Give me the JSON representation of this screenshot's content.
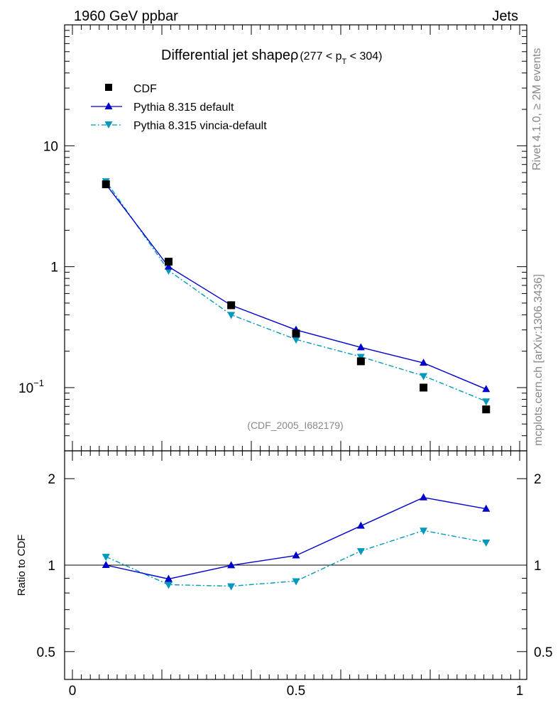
{
  "header": {
    "left": "1960 GeV ppbar",
    "right": "Jets"
  },
  "side_labels": {
    "rivet": "Rivet 4.1.0, ≥ 2M events",
    "mcplots": "mcplots.cern.ch [arXiv:1306.3436]"
  },
  "title": {
    "main": "Differential jet shapeρ",
    "range_open": "(277 < p",
    "range_sub": "T",
    "range_close": " < 304)"
  },
  "analysis_id": "(CDF_2005_I682179)",
  "ratio_ylabel": "Ratio to CDF",
  "colors": {
    "data": "#000000",
    "default": "#0000cc",
    "vincia": "#0099bb",
    "sidetext": "#888888"
  },
  "chart_data": [
    {
      "type": "line",
      "panel": "main",
      "yscale": "log",
      "ylim": [
        0.03,
        100
      ],
      "xlim": [
        0,
        1
      ],
      "yticks": [
        {
          "value": 10,
          "label": "10"
        },
        {
          "value": 1,
          "label": "1"
        },
        {
          "value": 0.1,
          "label": "10",
          "exp": "−1"
        }
      ],
      "x": [
        0.075,
        0.215,
        0.355,
        0.5,
        0.645,
        0.785,
        0.925
      ],
      "legend": [
        {
          "name": "CDF",
          "marker": "square"
        },
        {
          "name": "Pythia 8.315 default",
          "marker": "triangle-up"
        },
        {
          "name": "Pythia 8.315 vincia-default",
          "marker": "triangle-down"
        }
      ],
      "series": [
        {
          "name": "CDF",
          "style": "points",
          "values": [
            4.8,
            1.1,
            0.48,
            0.28,
            0.165,
            0.1,
            0.066
          ]
        },
        {
          "name": "Pythia 8.315 default",
          "style": "solid",
          "values": [
            4.8,
            1.0,
            0.48,
            0.3,
            0.215,
            0.16,
            0.097
          ]
        },
        {
          "name": "Pythia 8.315 vincia-default",
          "style": "dashdot",
          "values": [
            5.1,
            0.93,
            0.4,
            0.25,
            0.18,
            0.125,
            0.077
          ]
        }
      ]
    },
    {
      "type": "line",
      "panel": "ratio",
      "yscale": "log",
      "ylim": [
        0.4,
        2.5
      ],
      "xlim": [
        0,
        1
      ],
      "xticks": [
        {
          "value": 0,
          "label": "0"
        },
        {
          "value": 0.5,
          "label": "0.5"
        },
        {
          "value": 1,
          "label": "1"
        }
      ],
      "yticks": [
        {
          "value": 2,
          "label": "2"
        },
        {
          "value": 1,
          "label": "1"
        },
        {
          "value": 0.5,
          "label": "0.5"
        }
      ],
      "x": [
        0.075,
        0.215,
        0.355,
        0.5,
        0.645,
        0.785,
        0.925
      ],
      "series": [
        {
          "name": "Pythia 8.315 default",
          "style": "solid",
          "values": [
            1.0,
            0.895,
            0.998,
            1.08,
            1.37,
            1.72,
            1.57
          ]
        },
        {
          "name": "Pythia 8.315 vincia-default",
          "style": "dashdot",
          "values": [
            1.07,
            0.855,
            0.845,
            0.88,
            1.12,
            1.32,
            1.2
          ]
        }
      ]
    }
  ]
}
